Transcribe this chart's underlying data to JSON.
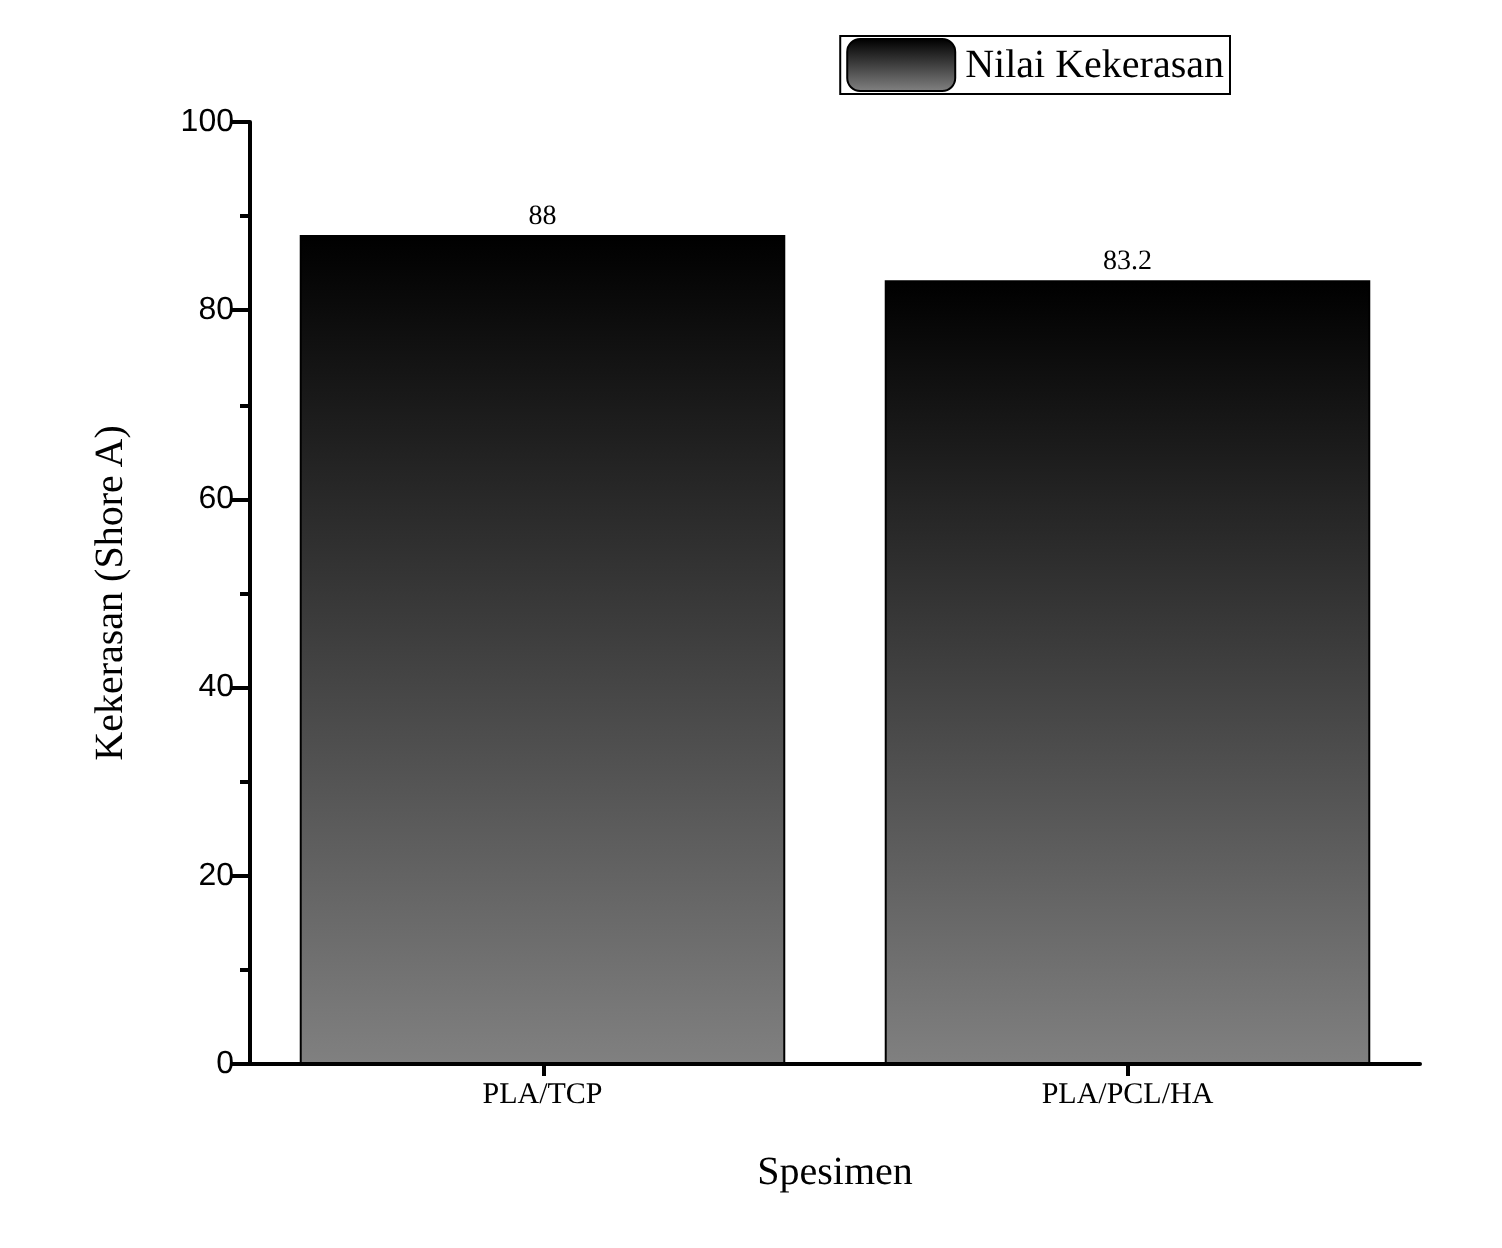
{
  "chart_data": {
    "type": "bar",
    "xlabel": "Spesimen",
    "ylabel": "Kekerasan (Shore A)",
    "categories": [
      "PLA/TCP",
      "PLA/PCL/HA"
    ],
    "series": [
      {
        "name": "Nilai Kekerasan",
        "color": "#000000",
        "values": [
          88,
          83.2
        ]
      }
    ],
    "ylim": [
      0,
      100
    ],
    "yticks": [
      0,
      20,
      40,
      60,
      80,
      100
    ],
    "grid": false,
    "legend": "top right",
    "data_labels": true
  }
}
